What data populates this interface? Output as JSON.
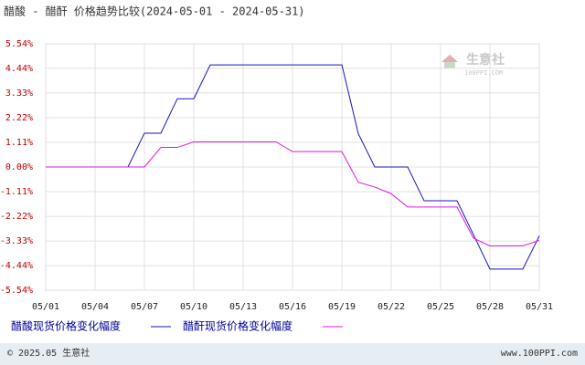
{
  "chart_data": {
    "type": "line",
    "title": "醋酸 - 醋酐 价格趋势比较(2024-05-01 - 2024-05-31)",
    "categories": [
      "05/01",
      null,
      null,
      "05/04",
      null,
      null,
      "05/07",
      null,
      null,
      "05/10",
      null,
      null,
      "05/13",
      null,
      null,
      "05/16",
      null,
      null,
      "05/19",
      null,
      null,
      "05/22",
      null,
      null,
      "05/25",
      null,
      null,
      "05/28",
      null,
      null,
      "05/31"
    ],
    "series": [
      {
        "name": "醋酸现货价格变化幅度",
        "color": "#1414c8",
        "values": [
          0,
          0,
          0,
          0,
          0,
          0,
          1.52,
          1.52,
          3.07,
          3.07,
          4.59,
          4.59,
          4.59,
          4.59,
          4.59,
          4.59,
          4.59,
          4.59,
          4.59,
          1.5,
          0,
          0,
          0,
          -1.52,
          -1.52,
          -1.52,
          -3.05,
          -4.59,
          -4.59,
          -4.59,
          -3.1
        ]
      },
      {
        "name": "醋酐现货价格变化幅度",
        "color": "#e014e0",
        "values": [
          0,
          0,
          0,
          0,
          0,
          0,
          0,
          0.88,
          0.88,
          1.13,
          1.13,
          1.13,
          1.13,
          1.13,
          1.13,
          0.69,
          0.69,
          0.69,
          0.69,
          -0.69,
          -0.9,
          -1.2,
          -1.8,
          -1.8,
          -1.8,
          -1.8,
          -3.2,
          -3.55,
          -3.55,
          -3.55,
          -3.3
        ]
      }
    ],
    "ylim": [
      -5.54,
      5.54
    ],
    "yticks": [
      {
        "value": 5.54,
        "label": "5.54%"
      },
      {
        "value": 4.44,
        "label": "4.44%"
      },
      {
        "value": 3.33,
        "label": "3.33%"
      },
      {
        "value": 2.22,
        "label": "2.22%"
      },
      {
        "value": 1.11,
        "label": "1.11%"
      },
      {
        "value": 0,
        "label": "0.00%"
      },
      {
        "value": -1.11,
        "label": "-1.11%"
      },
      {
        "value": -2.22,
        "label": "-2.22%"
      },
      {
        "value": -3.33,
        "label": "-3.33%"
      },
      {
        "value": -4.44,
        "label": "-4.44%"
      },
      {
        "value": -5.54,
        "label": "-5.54%"
      }
    ],
    "grid": true,
    "watermark": "生意社",
    "watermark_url": "100PPI.COM",
    "footer_left": "© 2025.05 生意社",
    "footer_right": "www.100PPI.com"
  }
}
